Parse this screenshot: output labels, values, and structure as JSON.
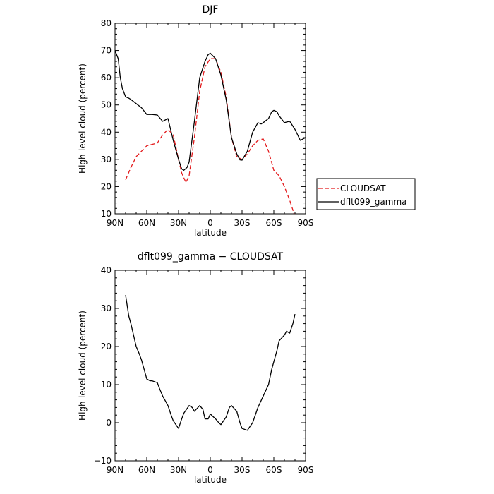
{
  "chart_data": [
    {
      "type": "line",
      "title": "DJF",
      "xlabel": "latitude",
      "ylabel": "High-level cloud (percent)",
      "xlim": [
        90,
        -90
      ],
      "ylim": [
        10,
        80
      ],
      "x_ticks": [
        90,
        60,
        30,
        0,
        -30,
        -60,
        -90
      ],
      "x_tick_labels": [
        "90N",
        "60N",
        "30N",
        "0",
        "30S",
        "60S",
        "90S"
      ],
      "y_ticks": [
        10,
        20,
        30,
        40,
        50,
        60,
        70,
        80
      ],
      "y_tick_labels": [
        "10",
        "20",
        "30",
        "40",
        "50",
        "60",
        "70",
        "80"
      ],
      "legend_position": "right",
      "series": [
        {
          "name": "CLOUDSAT",
          "color": "#e31a1c",
          "dash": "dashed",
          "x": [
            80,
            75,
            70,
            65,
            60,
            55,
            50,
            45,
            40,
            35,
            30,
            27,
            23,
            20,
            15,
            10,
            5,
            0,
            -5,
            -10,
            -15,
            -20,
            -25,
            -30,
            -35,
            -40,
            -45,
            -50,
            -55,
            -60,
            -65,
            -70,
            -75,
            -80
          ],
          "y": [
            22.5,
            27,
            31,
            33,
            35,
            35.5,
            36,
            39,
            41,
            39,
            30,
            25,
            21.5,
            24,
            38,
            55,
            64,
            67,
            67,
            62,
            53,
            38,
            31,
            30,
            32,
            35,
            37,
            37.5,
            33,
            26,
            24,
            20,
            15,
            9
          ]
        },
        {
          "name": "dflt099_gamma",
          "color": "#000000",
          "dash": "solid",
          "x": [
            90,
            87,
            85,
            83,
            80,
            77,
            75,
            70,
            65,
            60,
            55,
            50,
            45,
            40,
            35,
            30,
            27,
            25,
            22,
            20,
            15,
            10,
            5,
            2,
            0,
            -5,
            -10,
            -15,
            -20,
            -25,
            -28,
            -30,
            -35,
            -40,
            -45,
            -48,
            -50,
            -55,
            -58,
            -60,
            -63,
            -65,
            -70,
            -75,
            -80,
            -85,
            -90
          ],
          "y": [
            70,
            67,
            60,
            56,
            53,
            52.5,
            52,
            50.5,
            49,
            46.5,
            46.5,
            46.3,
            44,
            45,
            37,
            30,
            26.5,
            26,
            27,
            29,
            44,
            60,
            66,
            68.5,
            69,
            67,
            61,
            52,
            38,
            32,
            29.8,
            29.7,
            33,
            40,
            43.5,
            43,
            43.5,
            45,
            47.5,
            48,
            47.5,
            46,
            43.5,
            44,
            41,
            37,
            38
          ]
        }
      ]
    },
    {
      "type": "line",
      "title": "dflt099_gamma − CLOUDSAT",
      "xlabel": "latitude",
      "ylabel": "High-level cloud (percent)",
      "xlim": [
        90,
        -90
      ],
      "ylim": [
        -10,
        40
      ],
      "x_ticks": [
        90,
        60,
        30,
        0,
        -30,
        -60,
        -90
      ],
      "x_tick_labels": [
        "90N",
        "60N",
        "30N",
        "0",
        "30S",
        "60S",
        "90S"
      ],
      "y_ticks": [
        -10,
        0,
        10,
        20,
        30,
        40
      ],
      "y_tick_labels": [
        "−10",
        "0",
        "10",
        "20",
        "30",
        "40"
      ],
      "series": [
        {
          "color": "#000000",
          "dash": "solid",
          "x": [
            80,
            77,
            75,
            70,
            67,
            65,
            60,
            57,
            55,
            50,
            48,
            45,
            40,
            37,
            35,
            30,
            27,
            25,
            20,
            17,
            15,
            10,
            7,
            5,
            2,
            0,
            -5,
            -8,
            -10,
            -15,
            -18,
            -20,
            -25,
            -28,
            -30,
            -35,
            -40,
            -45,
            -50,
            -55,
            -58,
            -60,
            -63,
            -65,
            -70,
            -72,
            -75,
            -78,
            -80
          ],
          "y": [
            33.5,
            28,
            26,
            20,
            18,
            16.5,
            11.5,
            11,
            11,
            10.5,
            9,
            7,
            4.5,
            2,
            0.5,
            -1.5,
            1,
            2.5,
            4.5,
            4,
            3,
            4.5,
            3.5,
            1,
            1,
            2.3,
            1,
            0,
            -0.5,
            1.5,
            4,
            4.5,
            3,
            0,
            -1.5,
            -2,
            0,
            4,
            7,
            10,
            14,
            16,
            19,
            21.5,
            23,
            24,
            23.5,
            26,
            28.5
          ]
        }
      ]
    }
  ]
}
